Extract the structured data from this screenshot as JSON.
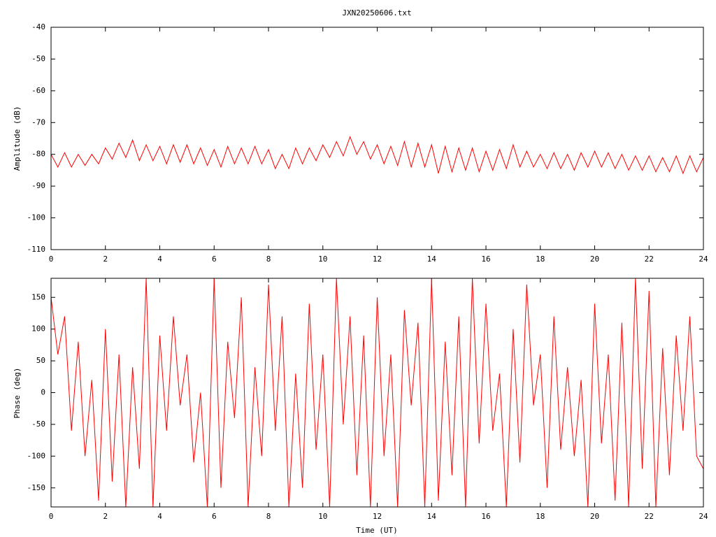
{
  "chart_data": [
    {
      "type": "line",
      "title": "JXN20250606.txt",
      "ylabel": "Amplitude (dB)",
      "color": "#ff0000",
      "xlim": [
        0,
        24
      ],
      "xticks": [
        0,
        2,
        4,
        6,
        8,
        10,
        12,
        14,
        16,
        18,
        20,
        22,
        24
      ],
      "ylim": [
        -110,
        -40
      ],
      "yticks": [
        -110,
        -100,
        -90,
        -80,
        -70,
        -60,
        -50,
        -40
      ],
      "x": [
        0,
        0.25,
        0.5,
        0.75,
        1,
        1.25,
        1.5,
        1.75,
        2,
        2.25,
        2.5,
        2.75,
        3,
        3.25,
        3.5,
        3.75,
        4,
        4.25,
        4.5,
        4.75,
        5,
        5.25,
        5.5,
        5.75,
        6,
        6.25,
        6.5,
        6.75,
        7,
        7.25,
        7.5,
        7.75,
        8,
        8.25,
        8.5,
        8.75,
        9,
        9.25,
        9.5,
        9.75,
        10,
        10.25,
        10.5,
        10.75,
        11,
        11.25,
        11.5,
        11.75,
        12,
        12.25,
        12.5,
        12.75,
        13,
        13.25,
        13.5,
        13.75,
        14,
        14.25,
        14.5,
        14.75,
        15,
        15.25,
        15.5,
        15.75,
        16,
        16.25,
        16.5,
        16.75,
        17,
        17.25,
        17.5,
        17.75,
        18,
        18.25,
        18.5,
        18.75,
        19,
        19.25,
        19.5,
        19.75,
        20,
        20.25,
        20.5,
        20.75,
        21,
        21.25,
        21.5,
        21.75,
        22,
        22.25,
        22.5,
        22.75,
        23,
        23.25,
        23.5,
        23.75,
        24
      ],
      "values": [
        -80,
        -84,
        -79.5,
        -84,
        -80,
        -83.5,
        -80,
        -83,
        -78,
        -81.5,
        -76.5,
        -81,
        -75.5,
        -82,
        -77,
        -82,
        -77.5,
        -83,
        -77,
        -82.5,
        -77,
        -83,
        -78,
        -83.5,
        -78.5,
        -84,
        -77.5,
        -83,
        -78,
        -83,
        -77.5,
        -83,
        -78.5,
        -84.5,
        -80,
        -84.5,
        -78,
        -83,
        -78,
        -82,
        -77,
        -81,
        -76,
        -80.5,
        -74.5,
        -80,
        -76,
        -81.5,
        -77,
        -83,
        -77.5,
        -83.5,
        -76,
        -84,
        -76.5,
        -84,
        -77,
        -86,
        -77.5,
        -85.5,
        -78,
        -85,
        -78,
        -85.5,
        -79,
        -85,
        -78.5,
        -84.5,
        -77,
        -84,
        -79,
        -84,
        -80,
        -84.5,
        -79.5,
        -84.5,
        -80,
        -85,
        -79.5,
        -84,
        -79,
        -84,
        -79.5,
        -84.5,
        -80,
        -85,
        -80.5,
        -85,
        -80.5,
        -85.5,
        -81,
        -85.5,
        -80.5,
        -86,
        -80.5,
        -85.5,
        -81
      ]
    },
    {
      "type": "line",
      "xlabel": "Time (UT)",
      "ylabel": "Phase (deg)",
      "color": "#ff0000",
      "xlim": [
        0,
        24
      ],
      "xticks": [
        0,
        2,
        4,
        6,
        8,
        10,
        12,
        14,
        16,
        18,
        20,
        22,
        24
      ],
      "ylim": [
        -180,
        180
      ],
      "yticks": [
        -150,
        -100,
        -50,
        0,
        50,
        100,
        150
      ],
      "x": [
        0,
        0.25,
        0.5,
        0.75,
        1,
        1.25,
        1.5,
        1.75,
        2,
        2.25,
        2.5,
        2.75,
        3,
        3.25,
        3.5,
        3.75,
        4,
        4.25,
        4.5,
        4.75,
        5,
        5.25,
        5.5,
        5.75,
        6,
        6.25,
        6.5,
        6.75,
        7,
        7.25,
        7.5,
        7.75,
        8,
        8.25,
        8.5,
        8.75,
        9,
        9.25,
        9.5,
        9.75,
        10,
        10.25,
        10.5,
        10.75,
        11,
        11.25,
        11.5,
        11.75,
        12,
        12.25,
        12.5,
        12.75,
        13,
        13.25,
        13.5,
        13.75,
        14,
        14.25,
        14.5,
        14.75,
        15,
        15.25,
        15.5,
        15.75,
        16,
        16.25,
        16.5,
        16.75,
        17,
        17.25,
        17.5,
        17.75,
        18,
        18.25,
        18.5,
        18.75,
        19,
        19.25,
        19.5,
        19.75,
        20,
        20.25,
        20.5,
        20.75,
        21,
        21.25,
        21.5,
        21.75,
        22,
        22.25,
        22.5,
        22.75,
        23,
        23.25,
        23.5,
        23.75,
        24
      ],
      "values": [
        150,
        60,
        120,
        -60,
        80,
        -100,
        20,
        -170,
        100,
        -140,
        60,
        -180,
        40,
        -120,
        180,
        -180,
        90,
        -60,
        120,
        -20,
        60,
        -110,
        0,
        -180,
        180,
        -150,
        80,
        -40,
        150,
        -180,
        40,
        -100,
        170,
        -60,
        120,
        -180,
        30,
        -150,
        140,
        -90,
        60,
        -180,
        180,
        -50,
        120,
        -130,
        90,
        -180,
        150,
        -100,
        60,
        -180,
        130,
        -20,
        110,
        -180,
        180,
        -170,
        80,
        -130,
        120,
        -180,
        180,
        -80,
        140,
        -60,
        30,
        -180,
        100,
        -110,
        170,
        -20,
        60,
        -150,
        120,
        -90,
        40,
        -100,
        20,
        -180,
        140,
        -80,
        60,
        -170,
        110,
        -180,
        180,
        -120,
        160,
        -180,
        70,
        -130,
        90,
        -60,
        120,
        -100,
        -120
      ]
    }
  ]
}
